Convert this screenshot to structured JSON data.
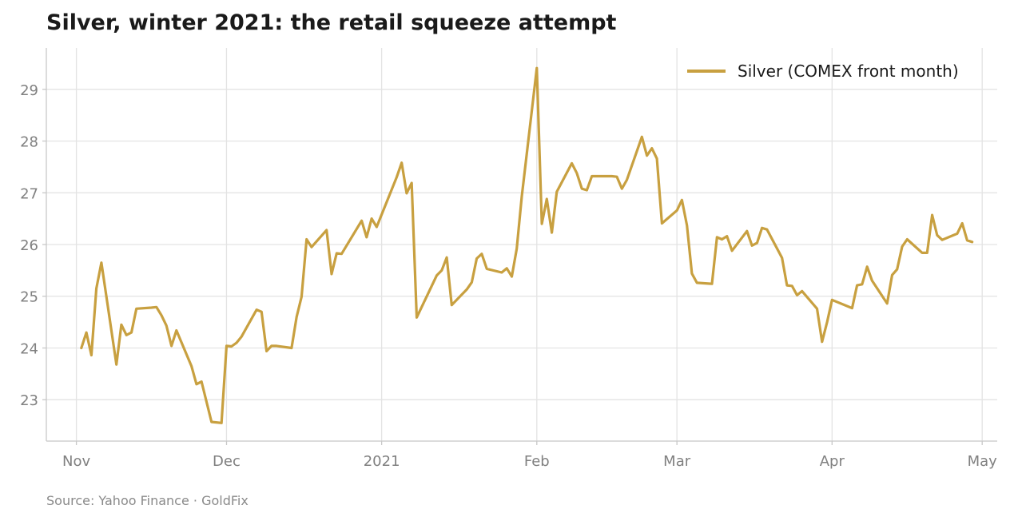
{
  "chart_data": {
    "type": "line",
    "title": "Silver, winter 2021: the retail squeeze attempt",
    "source": "Source: Yahoo Finance · GoldFix",
    "xlabel": "",
    "ylabel": "",
    "xlim": [
      "2020-10-26",
      "2021-05-04"
    ],
    "ylim": [
      22.2,
      29.8
    ],
    "yticks": [
      23,
      24,
      25,
      26,
      27,
      28,
      29
    ],
    "xticks": [
      {
        "date": "2020-11-01",
        "label": "Nov"
      },
      {
        "date": "2020-12-01",
        "label": "Dec"
      },
      {
        "date": "2021-01-01",
        "label": "2021"
      },
      {
        "date": "2021-02-01",
        "label": "Feb"
      },
      {
        "date": "2021-03-01",
        "label": "Mar"
      },
      {
        "date": "2021-04-01",
        "label": "Apr"
      },
      {
        "date": "2021-05-01",
        "label": "May"
      }
    ],
    "grid": true,
    "legend_position": "top-right",
    "series": [
      {
        "name": "Silver (COMEX front month)",
        "color": "#c8a040",
        "points": [
          [
            "2020-11-02",
            24.0
          ],
          [
            "2020-11-03",
            24.3
          ],
          [
            "2020-11-04",
            23.86
          ],
          [
            "2020-11-05",
            25.15
          ],
          [
            "2020-11-06",
            25.65
          ],
          [
            "2020-11-09",
            23.68
          ],
          [
            "2020-11-10",
            24.45
          ],
          [
            "2020-11-11",
            24.25
          ],
          [
            "2020-11-12",
            24.3
          ],
          [
            "2020-11-13",
            24.76
          ],
          [
            "2020-11-16",
            24.78
          ],
          [
            "2020-11-17",
            24.79
          ],
          [
            "2020-11-18",
            24.63
          ],
          [
            "2020-11-19",
            24.43
          ],
          [
            "2020-11-20",
            24.04
          ],
          [
            "2020-11-21",
            24.34
          ],
          [
            "2020-11-24",
            23.65
          ],
          [
            "2020-11-25",
            23.3
          ],
          [
            "2020-11-26",
            23.35
          ],
          [
            "2020-11-28",
            22.57
          ],
          [
            "2020-11-30",
            22.55
          ],
          [
            "2020-12-01",
            24.04
          ],
          [
            "2020-12-02",
            24.03
          ],
          [
            "2020-12-03",
            24.1
          ],
          [
            "2020-12-04",
            24.22
          ],
          [
            "2020-12-07",
            24.74
          ],
          [
            "2020-12-08",
            24.7
          ],
          [
            "2020-12-09",
            23.94
          ],
          [
            "2020-12-10",
            24.04
          ],
          [
            "2020-12-11",
            24.04
          ],
          [
            "2020-12-14",
            24.0
          ],
          [
            "2020-12-15",
            24.6
          ],
          [
            "2020-12-16",
            24.99
          ],
          [
            "2020-12-17",
            26.1
          ],
          [
            "2020-12-18",
            25.95
          ],
          [
            "2020-12-21",
            26.28
          ],
          [
            "2020-12-22",
            25.43
          ],
          [
            "2020-12-23",
            25.83
          ],
          [
            "2020-12-24",
            25.82
          ],
          [
            "2020-12-28",
            26.46
          ],
          [
            "2020-12-29",
            26.14
          ],
          [
            "2020-12-30",
            26.5
          ],
          [
            "2020-12-31",
            26.34
          ],
          [
            "2021-01-04",
            27.3
          ],
          [
            "2021-01-05",
            27.58
          ],
          [
            "2021-01-06",
            26.99
          ],
          [
            "2021-01-07",
            27.19
          ],
          [
            "2021-01-08",
            24.59
          ],
          [
            "2021-01-11",
            25.2
          ],
          [
            "2021-01-12",
            25.4
          ],
          [
            "2021-01-13",
            25.5
          ],
          [
            "2021-01-14",
            25.75
          ],
          [
            "2021-01-15",
            24.83
          ],
          [
            "2021-01-18",
            25.13
          ],
          [
            "2021-01-19",
            25.27
          ],
          [
            "2021-01-20",
            25.73
          ],
          [
            "2021-01-21",
            25.82
          ],
          [
            "2021-01-22",
            25.53
          ],
          [
            "2021-01-25",
            25.46
          ],
          [
            "2021-01-26",
            25.54
          ],
          [
            "2021-01-27",
            25.38
          ],
          [
            "2021-01-28",
            25.92
          ],
          [
            "2021-01-29",
            26.93
          ],
          [
            "2021-02-01",
            29.41
          ],
          [
            "2021-02-02",
            26.4
          ],
          [
            "2021-02-03",
            26.88
          ],
          [
            "2021-02-04",
            26.23
          ],
          [
            "2021-02-05",
            27.02
          ],
          [
            "2021-02-08",
            27.57
          ],
          [
            "2021-02-09",
            27.38
          ],
          [
            "2021-02-10",
            27.08
          ],
          [
            "2021-02-11",
            27.05
          ],
          [
            "2021-02-12",
            27.32
          ],
          [
            "2021-02-16",
            27.32
          ],
          [
            "2021-02-17",
            27.31
          ],
          [
            "2021-02-18",
            27.08
          ],
          [
            "2021-02-19",
            27.25
          ],
          [
            "2021-02-22",
            28.08
          ],
          [
            "2021-02-23",
            27.72
          ],
          [
            "2021-02-24",
            27.86
          ],
          [
            "2021-02-25",
            27.66
          ],
          [
            "2021-02-26",
            26.41
          ],
          [
            "2021-03-01",
            26.66
          ],
          [
            "2021-03-02",
            26.86
          ],
          [
            "2021-03-03",
            26.37
          ],
          [
            "2021-03-04",
            25.44
          ],
          [
            "2021-03-05",
            25.26
          ],
          [
            "2021-03-08",
            25.24
          ],
          [
            "2021-03-09",
            26.14
          ],
          [
            "2021-03-10",
            26.1
          ],
          [
            "2021-03-11",
            26.16
          ],
          [
            "2021-03-12",
            25.88
          ],
          [
            "2021-03-15",
            26.26
          ],
          [
            "2021-03-16",
            25.98
          ],
          [
            "2021-03-17",
            26.03
          ],
          [
            "2021-03-18",
            26.32
          ],
          [
            "2021-03-19",
            26.29
          ],
          [
            "2021-03-22",
            25.74
          ],
          [
            "2021-03-23",
            25.21
          ],
          [
            "2021-03-24",
            25.2
          ],
          [
            "2021-03-25",
            25.02
          ],
          [
            "2021-03-26",
            25.1
          ],
          [
            "2021-03-29",
            24.76
          ],
          [
            "2021-03-30",
            24.12
          ],
          [
            "2021-03-31",
            24.5
          ],
          [
            "2021-04-01",
            24.93
          ],
          [
            "2021-04-05",
            24.77
          ],
          [
            "2021-04-06",
            25.21
          ],
          [
            "2021-04-07",
            25.23
          ],
          [
            "2021-04-08",
            25.57
          ],
          [
            "2021-04-09",
            25.3
          ],
          [
            "2021-04-12",
            24.86
          ],
          [
            "2021-04-13",
            25.41
          ],
          [
            "2021-04-14",
            25.52
          ],
          [
            "2021-04-15",
            25.96
          ],
          [
            "2021-04-16",
            26.1
          ],
          [
            "2021-04-19",
            25.84
          ],
          [
            "2021-04-20",
            25.84
          ],
          [
            "2021-04-21",
            26.57
          ],
          [
            "2021-04-22",
            26.18
          ],
          [
            "2021-04-23",
            26.09
          ],
          [
            "2021-04-26",
            26.21
          ],
          [
            "2021-04-27",
            26.41
          ],
          [
            "2021-04-28",
            26.08
          ],
          [
            "2021-04-29",
            26.05
          ]
        ]
      }
    ]
  }
}
